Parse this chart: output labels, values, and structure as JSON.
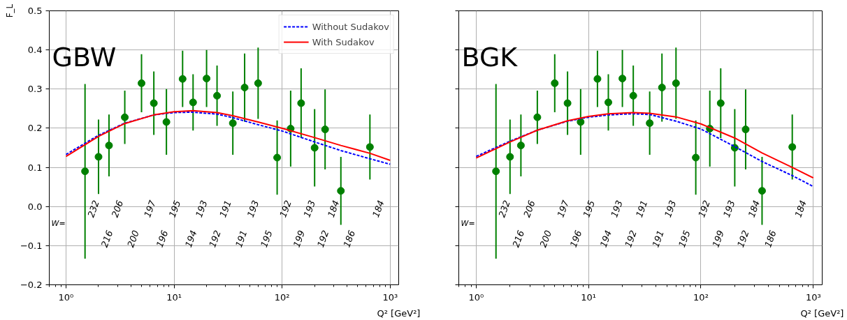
{
  "chart_data": [
    {
      "type": "scatter",
      "log": "x",
      "grid": true,
      "legend": "top right",
      "ylabel": "F_L",
      "xlabel": "Q² [GeV²]",
      "xlim": [
        0.7,
        1200
      ],
      "ylim": [
        -0.2,
        0.5
      ],
      "xticks": [
        {
          "value": 1,
          "label": "10⁰"
        },
        {
          "value": 10,
          "label": "10¹"
        },
        {
          "value": 100,
          "label": "10²"
        },
        {
          "value": 1000,
          "label": "10³"
        }
      ],
      "yticks": [
        {
          "value": -0.2,
          "label": "−0.2"
        },
        {
          "value": -0.1,
          "label": "−0.1"
        },
        {
          "value": 0,
          "label": "0.0"
        },
        0.1,
        0.2,
        0.3,
        0.4,
        0.5
      ],
      "series": [
        {
          "color": "#008000",
          "marker": "circle",
          "x": [
            1.5,
            2,
            2.5,
            3.5,
            5,
            6.5,
            8.5,
            12,
            15,
            20,
            25,
            35,
            45,
            60,
            90,
            120,
            150,
            200,
            250,
            350,
            650
          ],
          "values": [
            0.09,
            0.127,
            0.156,
            0.228,
            0.315,
            0.264,
            0.216,
            0.326,
            0.266,
            0.327,
            0.283,
            0.213,
            0.304,
            0.315,
            0.125,
            0.199,
            0.264,
            0.15,
            0.197,
            0.04,
            0.152
          ],
          "errors": [
            0.223,
            0.095,
            0.079,
            0.068,
            0.074,
            0.081,
            0.084,
            0.072,
            0.072,
            0.073,
            0.077,
            0.081,
            0.087,
            0.091,
            0.095,
            0.097,
            0.089,
            0.099,
            0.102,
            0.087,
            0.083
          ]
        },
        {
          "type": "line",
          "name": "Without Sudakov",
          "color": "#0000ff",
          "line_style": "dashed",
          "x": [
            1,
            2,
            3.5,
            6.5,
            10,
            15,
            25,
            35,
            60,
            100,
            200,
            350,
            650,
            1000
          ],
          "values": [
            0.133,
            0.182,
            0.213,
            0.234,
            0.24,
            0.241,
            0.236,
            0.227,
            0.209,
            0.193,
            0.165,
            0.143,
            0.122,
            0.108
          ]
        },
        {
          "type": "line",
          "name": "With Sudakov",
          "color": "#ff0000",
          "line_style": "solid",
          "x": [
            1,
            2,
            3.5,
            6.5,
            10,
            15,
            25,
            35,
            60,
            100,
            200,
            350,
            650,
            1000
          ],
          "values": [
            0.128,
            0.179,
            0.212,
            0.234,
            0.242,
            0.245,
            0.24,
            0.232,
            0.216,
            0.2,
            0.176,
            0.156,
            0.136,
            0.118
          ]
        }
      ],
      "annotations": [
        "GBW",
        "W=",
        "232",
        "216",
        "206",
        "200",
        "197",
        "196",
        "195",
        "194",
        "193",
        "192",
        "191",
        "191",
        "193",
        "195",
        "192",
        "199",
        "193",
        "192",
        "184",
        "186",
        "184"
      ]
    },
    {
      "type": "scatter",
      "log": "x",
      "grid": true,
      "tick_labels": "x",
      "xlabel": "Q² [GeV²]",
      "xlim": [
        0.7,
        1200
      ],
      "ylim": [
        -0.2,
        0.5
      ],
      "xticks": [
        {
          "value": 1,
          "label": "10⁰"
        },
        {
          "value": 10,
          "label": "10¹"
        },
        {
          "value": 100,
          "label": "10²"
        },
        {
          "value": 1000,
          "label": "10³"
        }
      ],
      "yticks": [
        {
          "value": -0.2,
          "label": null
        },
        {
          "value": -0.1,
          "label": null
        },
        {
          "value": 0,
          "label": null
        },
        {
          "value": 0.1,
          "label": null
        },
        {
          "value": 0.2,
          "label": null
        },
        {
          "value": 0.3,
          "label": null
        },
        {
          "value": 0.4,
          "label": null
        },
        {
          "value": 0.5,
          "label": null
        }
      ],
      "series": [
        {
          "color": "#008000",
          "marker": "circle",
          "x": [
            1.5,
            2,
            2.5,
            3.5,
            5,
            6.5,
            8.5,
            12,
            15,
            20,
            25,
            35,
            45,
            60,
            90,
            120,
            150,
            200,
            250,
            350,
            650
          ],
          "values": [
            0.09,
            0.127,
            0.156,
            0.228,
            0.315,
            0.264,
            0.216,
            0.326,
            0.266,
            0.327,
            0.283,
            0.213,
            0.304,
            0.315,
            0.125,
            0.199,
            0.264,
            0.15,
            0.197,
            0.04,
            0.152
          ],
          "errors": [
            0.223,
            0.095,
            0.079,
            0.068,
            0.074,
            0.081,
            0.084,
            0.072,
            0.072,
            0.073,
            0.077,
            0.081,
            0.087,
            0.091,
            0.095,
            0.097,
            0.089,
            0.099,
            0.102,
            0.087,
            0.083
          ]
        },
        {
          "type": "line",
          "color": "#0000ff",
          "line_style": "dashed",
          "x": [
            1,
            2,
            3.5,
            6.5,
            10,
            15,
            25,
            35,
            60,
            100,
            200,
            350,
            650,
            1000
          ],
          "values": [
            0.128,
            0.167,
            0.195,
            0.218,
            0.228,
            0.234,
            0.237,
            0.235,
            0.218,
            0.198,
            0.153,
            0.115,
            0.079,
            0.051
          ]
        },
        {
          "type": "line",
          "color": "#ff0000",
          "line_style": "solid",
          "x": [
            1,
            2,
            3.5,
            6.5,
            10,
            15,
            25,
            35,
            60,
            100,
            200,
            350,
            650,
            1000
          ],
          "values": [
            0.124,
            0.165,
            0.195,
            0.219,
            0.23,
            0.237,
            0.24,
            0.238,
            0.229,
            0.211,
            0.175,
            0.137,
            0.1,
            0.073
          ]
        }
      ],
      "annotations": [
        "BGK",
        "W=",
        "232",
        "216",
        "206",
        "200",
        "197",
        "196",
        "195",
        "194",
        "193",
        "192",
        "191",
        "191",
        "193",
        "195",
        "192",
        "199",
        "193",
        "192",
        "184",
        "186",
        "184"
      ]
    }
  ]
}
